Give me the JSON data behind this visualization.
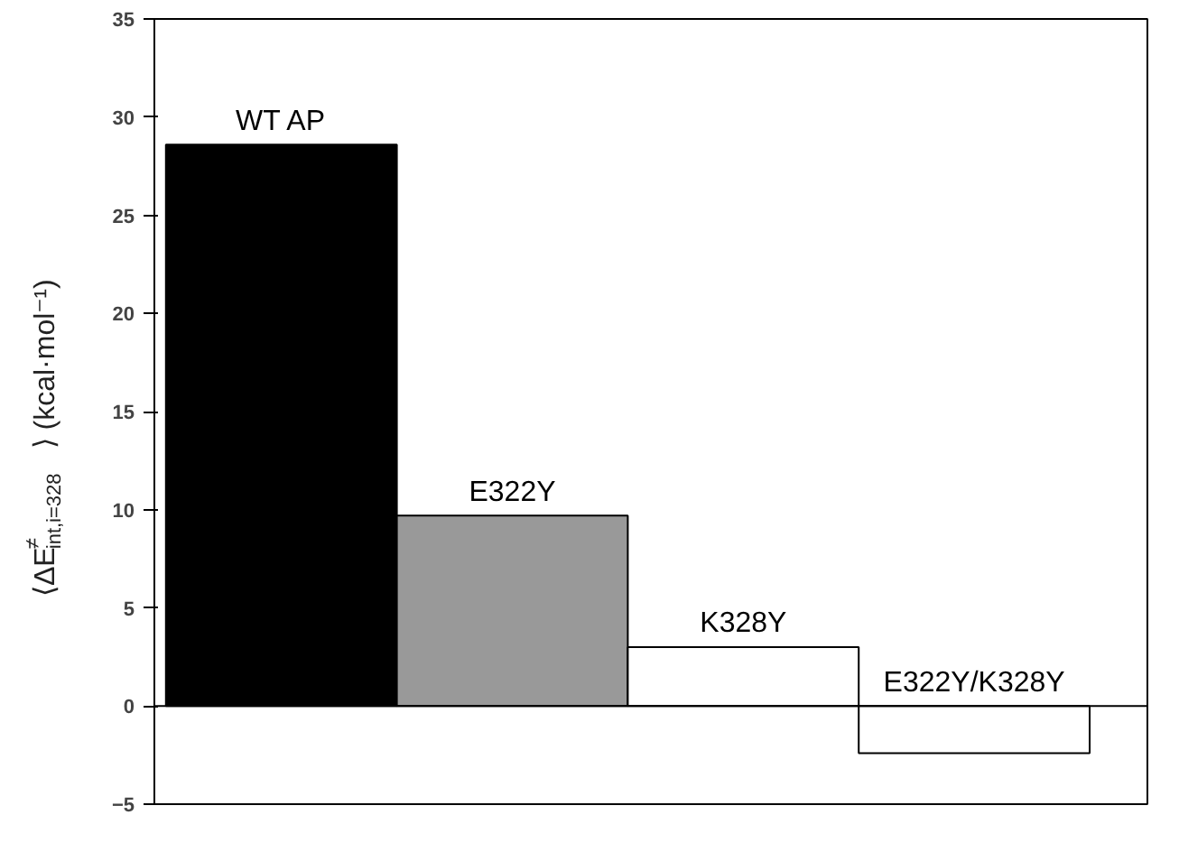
{
  "chart_data": {
    "type": "bar",
    "ylabel": "⟨ΔE$^{≠}$$_{int,i=328}$⟩ (kcal·mol⁻¹)",
    "categories": [
      "WT AP",
      "E322Y",
      "K328Y",
      "E322Y/K328Y"
    ],
    "values": [
      28.6,
      9.7,
      3.0,
      -2.4
    ],
    "colors": [
      "#000000",
      "#999999",
      "#ffffff",
      "#ffffff"
    ],
    "ylim": [
      -5,
      35
    ],
    "yticks": [
      -5,
      0,
      5,
      10,
      15,
      20,
      25,
      30,
      35
    ],
    "tick_labels": "y"
  }
}
